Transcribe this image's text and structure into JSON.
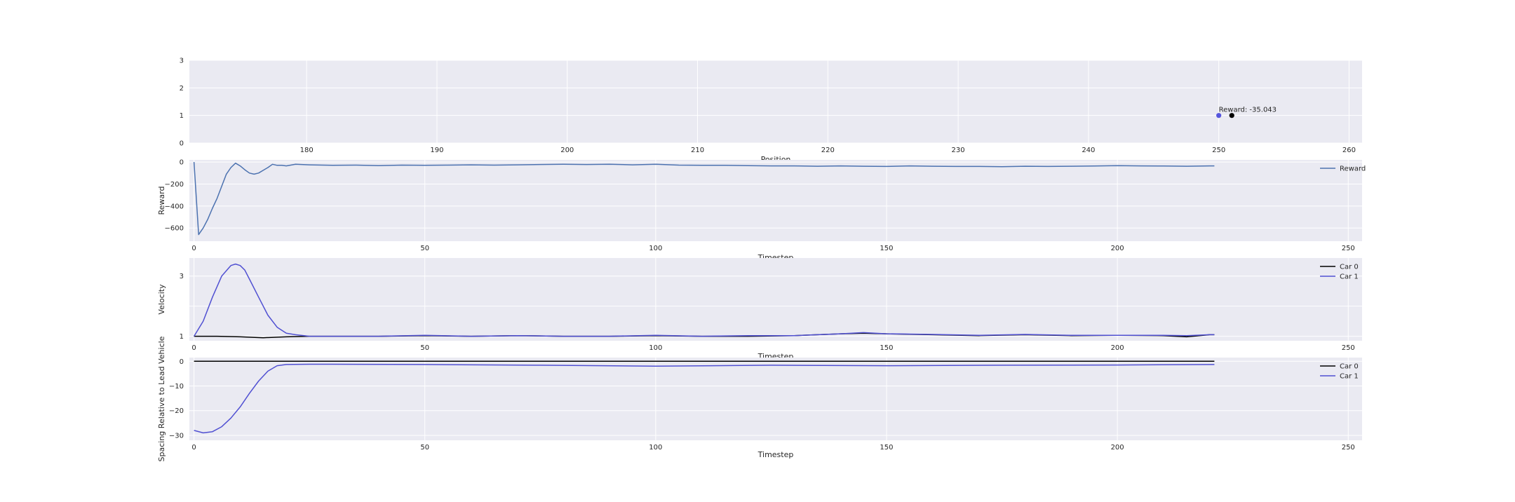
{
  "figure": {
    "background": "#ffffff",
    "axes_facecolor": "#EAEAF2",
    "grid_color": "#ffffff",
    "text_color": "#262626"
  },
  "chart_data": [
    {
      "type": "scatter",
      "xlabel": "Position",
      "ylabel": "",
      "xlim": [
        171,
        261
      ],
      "ylim": [
        0,
        3
      ],
      "xticks": [
        180,
        190,
        200,
        210,
        220,
        230,
        240,
        250,
        260
      ],
      "yticks": [
        0,
        1,
        2,
        3
      ],
      "grid": true,
      "points": [
        {
          "x": 250,
          "y": 1,
          "color": "#5555dd"
        },
        {
          "x": 251,
          "y": 1,
          "color": "#000000"
        }
      ],
      "annotation": {
        "text": "Reward: -35.043",
        "x": 250,
        "y": 1
      }
    },
    {
      "type": "line",
      "xlabel": "Timestep",
      "ylabel": "Reward",
      "xlim": [
        -1,
        253
      ],
      "ylim": [
        -720,
        20
      ],
      "xticks": [
        0,
        50,
        100,
        150,
        200,
        250
      ],
      "yticks": [
        0,
        -200,
        -400,
        -600
      ],
      "grid": true,
      "legend_position": "top-right",
      "series": [
        {
          "name": "Reward",
          "color": "#4C72B0",
          "x": [
            0,
            1,
            2,
            3,
            4,
            5,
            6,
            7,
            8,
            9,
            10,
            11,
            12,
            13,
            14,
            15,
            16,
            17,
            18,
            19,
            20,
            22,
            25,
            30,
            35,
            40,
            45,
            50,
            55,
            60,
            65,
            70,
            75,
            80,
            85,
            90,
            95,
            100,
            105,
            110,
            115,
            120,
            125,
            130,
            135,
            140,
            145,
            150,
            155,
            160,
            165,
            170,
            175,
            180,
            185,
            190,
            195,
            200,
            205,
            210,
            215,
            220,
            221
          ],
          "y": [
            0,
            -660,
            -600,
            -520,
            -420,
            -330,
            -220,
            -110,
            -50,
            -10,
            -35,
            -70,
            -100,
            -110,
            -100,
            -75,
            -50,
            -20,
            -30,
            -30,
            -35,
            -20,
            -25,
            -30,
            -28,
            -32,
            -28,
            -30,
            -28,
            -25,
            -28,
            -25,
            -22,
            -20,
            -22,
            -20,
            -25,
            -20,
            -28,
            -30,
            -30,
            -32,
            -35,
            -35,
            -38,
            -35,
            -38,
            -40,
            -35,
            -38,
            -40,
            -40,
            -42,
            -38,
            -40,
            -38,
            -36,
            -32,
            -35,
            -36,
            -38,
            -35,
            -35
          ]
        }
      ]
    },
    {
      "type": "line",
      "xlabel": "Timestep",
      "ylabel": "Velocity",
      "xlim": [
        -1,
        253
      ],
      "ylim": [
        0.85,
        3.6
      ],
      "xticks": [
        0,
        50,
        100,
        150,
        200,
        250
      ],
      "yticks": [
        1,
        2,
        3
      ],
      "ytick_labels": [
        "1",
        "",
        "3"
      ],
      "grid": true,
      "legend_position": "top-right",
      "series": [
        {
          "name": "Car 0",
          "color": "#000000",
          "x": [
            0,
            5,
            10,
            15,
            20,
            25,
            30,
            40,
            50,
            60,
            70,
            80,
            90,
            100,
            110,
            120,
            130,
            140,
            145,
            150,
            160,
            170,
            180,
            190,
            200,
            210,
            215,
            220,
            221
          ],
          "y": [
            1.0,
            1.0,
            0.98,
            0.95,
            0.98,
            1.0,
            1.0,
            1.0,
            1.02,
            1.0,
            1.02,
            1.0,
            1.0,
            1.02,
            1.0,
            1.0,
            1.02,
            1.08,
            1.1,
            1.08,
            1.05,
            1.02,
            1.05,
            1.02,
            1.03,
            1.02,
            0.98,
            1.05,
            1.05
          ]
        },
        {
          "name": "Car 1",
          "color": "#5050d2",
          "x": [
            0,
            2,
            4,
            6,
            8,
            9,
            10,
            11,
            12,
            14,
            16,
            18,
            20,
            22,
            25,
            30,
            40,
            50,
            60,
            70,
            80,
            90,
            100,
            110,
            120,
            130,
            140,
            145,
            150,
            160,
            170,
            180,
            190,
            200,
            210,
            215,
            220,
            221
          ],
          "y": [
            1.0,
            1.5,
            2.3,
            3.0,
            3.35,
            3.4,
            3.35,
            3.2,
            2.9,
            2.3,
            1.7,
            1.3,
            1.1,
            1.05,
            1.0,
            1.0,
            1.0,
            1.03,
            1.0,
            1.02,
            1.0,
            1.0,
            1.03,
            1.0,
            1.02,
            1.02,
            1.08,
            1.12,
            1.08,
            1.06,
            1.03,
            1.06,
            1.03,
            1.03,
            1.03,
            1.02,
            1.05,
            1.05
          ]
        }
      ]
    },
    {
      "type": "line",
      "xlabel": "Timestep",
      "ylabel": "Spacing Relative to Lead Vehicle",
      "xlim": [
        -1,
        253
      ],
      "ylim": [
        -32,
        1.5
      ],
      "xticks": [
        0,
        50,
        100,
        150,
        200,
        250
      ],
      "yticks": [
        0,
        -10,
        -20,
        -30
      ],
      "grid": true,
      "legend_position": "top-right",
      "series": [
        {
          "name": "Car 0",
          "color": "#000000",
          "x": [
            0,
            221
          ],
          "y": [
            0,
            0
          ]
        },
        {
          "name": "Car 1",
          "color": "#5050d2",
          "x": [
            0,
            2,
            4,
            6,
            8,
            10,
            12,
            14,
            16,
            18,
            20,
            25,
            30,
            50,
            75,
            100,
            125,
            150,
            175,
            200,
            221
          ],
          "y": [
            -28,
            -29,
            -28.5,
            -26.5,
            -23,
            -18.5,
            -13,
            -8,
            -4,
            -1.8,
            -1.3,
            -1.2,
            -1.2,
            -1.3,
            -1.6,
            -2.0,
            -1.6,
            -1.8,
            -1.6,
            -1.5,
            -1.3
          ]
        }
      ]
    }
  ]
}
